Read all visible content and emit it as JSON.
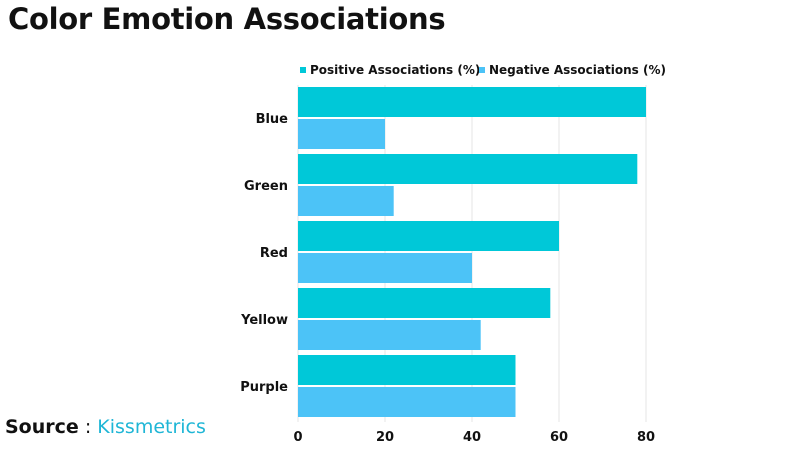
{
  "title": "Color Emotion Associations",
  "source": {
    "label": "Source",
    "separator": " : ",
    "name": "Kissmetrics"
  },
  "colors": {
    "positive": "#00c8d8",
    "negative": "#4cc3f7",
    "grid": "#e6e6e6",
    "link": "#1fb6d6"
  },
  "chart_data": {
    "type": "bar",
    "orientation": "horizontal",
    "categories": [
      "Blue",
      "Green",
      "Red",
      "Yellow",
      "Purple"
    ],
    "series": [
      {
        "name": "Positive Associations (%)",
        "values": [
          80,
          78,
          60,
          58,
          50
        ]
      },
      {
        "name": "Negative Associations (%)",
        "values": [
          20,
          22,
          40,
          42,
          50
        ]
      }
    ],
    "xlim": [
      0,
      80
    ],
    "xticks": [
      "0",
      "20",
      "40",
      "60",
      "80"
    ],
    "grid": true,
    "legend_position": "top"
  }
}
